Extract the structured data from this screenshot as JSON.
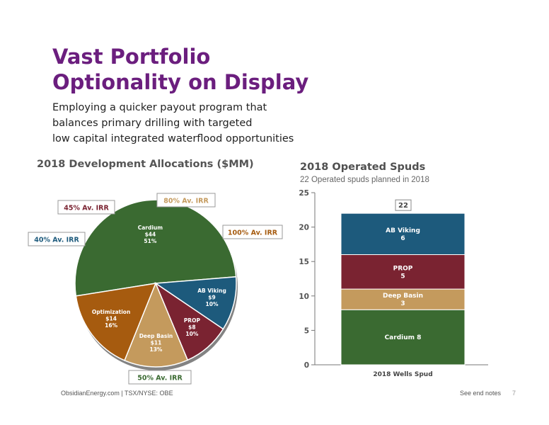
{
  "header": {
    "title_line1": "Vast Portfolio",
    "title_line2": "Optionality on Display",
    "subtitle_lines": [
      "Employing a quicker payout program that",
      "balances primary drilling with targeted",
      "low capital integrated waterflood opportunities"
    ]
  },
  "colors": {
    "title": "#6b1e7e",
    "cardium": "#3a6a31",
    "ab_viking": "#1d5a7c",
    "prop": "#7a2331",
    "deep_basin": "#c49a5d",
    "optimization": "#a65b0f"
  },
  "chart_data": [
    {
      "type": "pie",
      "title": "2018 Development Allocations ($MM)",
      "slices": [
        {
          "name": "Cardium",
          "value": 44,
          "value_label": "$44",
          "percent": "51%",
          "irr": "50% Av. IRR",
          "color": "#3a6a31"
        },
        {
          "name": "AB Viking",
          "value": 9,
          "value_label": "$9",
          "percent": "10%",
          "irr": "40% Av. IRR",
          "color": "#1d5a7c"
        },
        {
          "name": "PROP",
          "value": 8,
          "value_label": "$8",
          "percent": "10%",
          "irr": "45% Av. IRR",
          "color": "#7a2331"
        },
        {
          "name": "Deep Basin",
          "value": 11,
          "value_label": "$11",
          "percent": "13%",
          "irr": "80% Av. IRR",
          "color": "#c49a5d"
        },
        {
          "name": "Optimization",
          "value": 14,
          "value_label": "$14",
          "percent": "16%",
          "irr": "100% Av. IRR",
          "color": "#a65b0f"
        }
      ]
    },
    {
      "type": "bar",
      "stacked": true,
      "title": "2018 Operated Spuds",
      "subtitle": "22 Operated spuds planned in 2018",
      "categories": [
        "2018 Wells Spud"
      ],
      "ylim": [
        0,
        25
      ],
      "yticks": [
        0,
        5,
        10,
        15,
        20,
        25
      ],
      "total_label": "22",
      "series": [
        {
          "name": "Cardium",
          "values": [
            8
          ],
          "label": "Cardium 8",
          "color": "#3a6a31"
        },
        {
          "name": "Deep Basin",
          "values": [
            3
          ],
          "label": "Deep Basin\n3",
          "color": "#c49a5d"
        },
        {
          "name": "PROP",
          "values": [
            5
          ],
          "label": "PROP\n5",
          "color": "#7a2331"
        },
        {
          "name": "AB Viking",
          "values": [
            6
          ],
          "label": "AB Viking\n6",
          "color": "#1d5a7c"
        }
      ]
    }
  ],
  "footer": {
    "left": "ObsidianEnergy.com | TSX/NYSE: OBE",
    "right": "See end notes",
    "page": "7"
  }
}
